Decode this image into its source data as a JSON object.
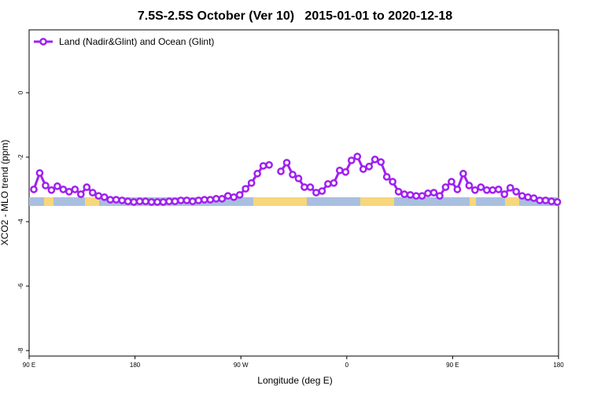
{
  "chart_data": {
    "type": "line",
    "title": "7.5S-2.5S October (Ver 10)   2015-01-01 to 2020-12-18",
    "xlabel": "Longitude (deg E)",
    "ylabel": "XCO2 - MLO trend (ppm)",
    "xlim": [
      90,
      540
    ],
    "ylim": [
      -8.17,
      1.95
    ],
    "xticks": [
      {
        "value": 90,
        "label": "90 E"
      },
      {
        "value": 180,
        "label": "180"
      },
      {
        "value": 270,
        "label": "90 W"
      },
      {
        "value": 360,
        "label": "0"
      },
      {
        "value": 450,
        "label": "90 E"
      },
      {
        "value": 540,
        "label": "180"
      }
    ],
    "yticks": [
      0,
      -2,
      -4,
      -6,
      -8
    ],
    "legend": "upper left",
    "x": [
      94,
      99,
      104,
      109,
      114,
      119,
      124,
      129,
      134,
      139,
      144,
      149,
      154,
      159,
      164,
      169,
      174,
      179,
      184,
      189,
      194,
      199,
      204,
      209,
      214,
      219,
      224,
      229,
      234,
      239,
      244,
      249,
      254,
      259,
      264,
      269,
      274,
      279,
      284,
      289,
      294,
      299,
      304,
      309,
      314,
      319,
      324,
      329,
      334,
      339,
      344,
      349,
      354,
      359,
      364,
      369,
      374,
      379,
      384,
      389,
      394,
      399,
      404,
      409,
      414,
      419,
      424,
      429,
      434,
      439,
      444,
      449,
      454,
      459,
      464,
      469,
      474,
      479,
      484,
      489,
      494,
      499,
      504,
      509,
      514,
      519,
      524,
      529,
      534,
      539
    ],
    "series": [
      {
        "name": "Land (Nadir&Glint) and Ocean (Glint)",
        "color": "#a020f0",
        "values": [
          -3.0,
          -2.49,
          -2.88,
          -3.02,
          -2.9,
          -3.0,
          -3.07,
          -3.0,
          -3.15,
          -2.93,
          -3.1,
          -3.2,
          -3.24,
          -3.32,
          -3.32,
          -3.34,
          -3.37,
          -3.39,
          -3.37,
          -3.37,
          -3.39,
          -3.39,
          -3.39,
          -3.37,
          -3.37,
          -3.34,
          -3.34,
          -3.37,
          -3.34,
          -3.32,
          -3.32,
          -3.29,
          -3.29,
          -3.2,
          -3.24,
          -3.17,
          -2.98,
          -2.8,
          -2.51,
          -2.27,
          -2.24,
          null,
          -2.44,
          -2.17,
          -2.54,
          -2.66,
          -2.93,
          -2.93,
          -3.1,
          -3.05,
          -2.83,
          -2.8,
          -2.41,
          -2.46,
          -2.1,
          -1.98,
          -2.37,
          -2.29,
          -2.07,
          -2.15,
          -2.61,
          -2.76,
          -3.07,
          -3.15,
          -3.17,
          -3.2,
          -3.2,
          -3.12,
          -3.1,
          -3.2,
          -2.93,
          -2.76,
          -3.0,
          -2.51,
          -2.88,
          -3.02,
          -2.93,
          -3.02,
          -3.02,
          -3.0,
          -3.15,
          -2.95,
          -3.07,
          -3.2,
          -3.24,
          -3.27,
          -3.34,
          -3.34,
          -3.37,
          -3.39
        ]
      }
    ]
  }
}
